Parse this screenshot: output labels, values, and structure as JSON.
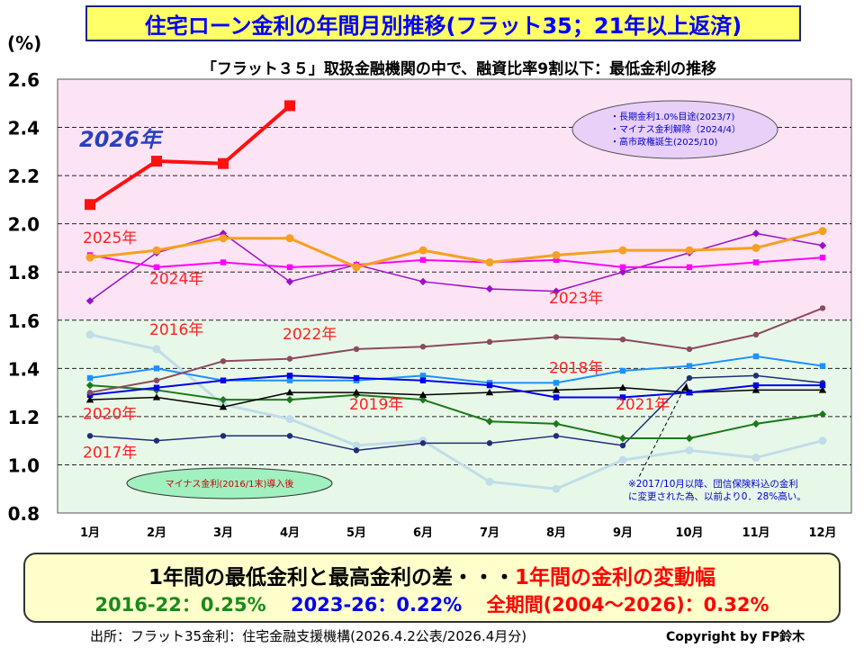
{
  "title": "住宅ローン金利の年間月別推移(フラット35；21年以上返済)",
  "subtitle": "「フラット３５」取扱金融機関の中で、融資比率9割以下：最低金利の推移",
  "unit_label": "(%)",
  "legend_box": {
    "items": [
      "・長期金利1.0%目途(2023/7)",
      "・マイナス金利解除（2024/4）",
      "・高市政権誕生(2025/10)"
    ]
  },
  "negative_rate_note": "マイナス金利(2016/1末)導入後",
  "insurance_note": [
    "※2017/10月以降、団信保険料込の金利",
    "に変更された為、以前より0．28%高い。"
  ],
  "summary": {
    "line1_black": "1年間の最低金利と最高金利の差・・・",
    "line1_red": "1年間の金利の変動幅",
    "green": "2016-22：0.25%",
    "blue": "2023-26：0.22%",
    "red": "全期間(2004～2026)：0.32%"
  },
  "source": "出所：フラット35金利：住宅金融支援機構(2026.4.2公表/2026.4月分)",
  "copyright": "Copyright by FP鈴木",
  "chart_data": {
    "type": "line",
    "categories": [
      "1月",
      "2月",
      "3月",
      "4月",
      "5月",
      "6月",
      "7月",
      "8月",
      "9月",
      "10月",
      "11月",
      "12月"
    ],
    "y_ticks": [
      "0.8",
      "1.0",
      "1.2",
      "1.4",
      "1.6",
      "1.8",
      "2.0",
      "2.2",
      "2.4",
      "2.6"
    ],
    "ylim": [
      0.8,
      2.6
    ],
    "grid": "horizontal dashed",
    "background_bands": [
      {
        "from": 1.6,
        "to": 2.6,
        "color": "#fce4f4"
      },
      {
        "from": 0.8,
        "to": 1.6,
        "color": "#e8f8e8"
      }
    ],
    "series": [
      {
        "name": "2016年",
        "color": "#c0dde8",
        "width": 3,
        "marker": "circle",
        "values": [
          1.54,
          1.48,
          1.25,
          1.19,
          1.08,
          1.1,
          0.93,
          0.9,
          1.02,
          1.06,
          1.03,
          1.1
        ]
      },
      {
        "name": "2017年",
        "color": "#1f2d7a",
        "width": 1.5,
        "marker": "circle",
        "values": [
          1.12,
          1.1,
          1.12,
          1.12,
          1.06,
          1.09,
          1.09,
          1.12,
          1.08,
          1.36,
          1.37,
          1.34
        ]
      },
      {
        "name": "2018年",
        "color": "#1e90ff",
        "width": 2,
        "marker": "square",
        "values": [
          1.36,
          1.4,
          1.35,
          1.35,
          1.35,
          1.37,
          1.34,
          1.34,
          1.39,
          1.41,
          1.45,
          1.41
        ]
      },
      {
        "name": "2019年",
        "color": "#1a7a1a",
        "width": 2,
        "marker": "diamond",
        "values": [
          1.33,
          1.31,
          1.27,
          1.27,
          1.29,
          1.27,
          1.18,
          1.17,
          1.11,
          1.11,
          1.17,
          1.21
        ]
      },
      {
        "name": "2020年",
        "color": "#000000",
        "width": 1.5,
        "marker": "triangle",
        "values": [
          1.27,
          1.28,
          1.24,
          1.3,
          1.3,
          1.29,
          1.3,
          1.31,
          1.32,
          1.3,
          1.31,
          1.31
        ]
      },
      {
        "name": "2021年",
        "color": "#0000ee",
        "width": 2,
        "marker": "square",
        "values": [
          1.29,
          1.32,
          1.35,
          1.37,
          1.36,
          1.35,
          1.33,
          1.28,
          1.28,
          1.3,
          1.33,
          1.33
        ]
      },
      {
        "name": "2022年",
        "color": "#8b4a5e",
        "width": 2,
        "marker": "circle",
        "values": [
          1.3,
          1.35,
          1.43,
          1.44,
          1.48,
          1.49,
          1.51,
          1.53,
          1.52,
          1.48,
          1.54,
          1.65
        ]
      },
      {
        "name": "2023年",
        "color": "#9b10c9",
        "width": 1.5,
        "marker": "diamond",
        "values": [
          1.68,
          1.88,
          1.96,
          1.76,
          1.83,
          1.76,
          1.73,
          1.72,
          1.8,
          1.88,
          1.96,
          1.91
        ]
      },
      {
        "name": "2024年",
        "color": "#ff00ff",
        "width": 2,
        "marker": "square",
        "values": [
          1.87,
          1.82,
          1.84,
          1.82,
          1.83,
          1.85,
          1.84,
          1.85,
          1.82,
          1.82,
          1.84,
          1.86
        ]
      },
      {
        "name": "2025年",
        "color": "#f5a020",
        "width": 3,
        "marker": "circle",
        "values": [
          1.86,
          1.89,
          1.94,
          1.94,
          1.82,
          1.89,
          1.84,
          1.87,
          1.89,
          1.89,
          1.9,
          1.97
        ]
      },
      {
        "name": "2026年",
        "color": "#ff1010",
        "width": 4,
        "marker": "square",
        "values": [
          2.08,
          2.26,
          2.25,
          2.49,
          null,
          null,
          null,
          null,
          null,
          null,
          null,
          null
        ]
      }
    ],
    "series_labels": [
      {
        "text": "2026年",
        "color": "#2a3fc0",
        "anchor_month": "1月",
        "anchor_value": 2.32
      },
      {
        "text": "2025年",
        "color": "#ff2020",
        "anchor_month": "1月",
        "anchor_value": 1.92
      },
      {
        "text": "2024年",
        "color": "#ff2020",
        "anchor_month": "2月",
        "anchor_value": 1.75
      },
      {
        "text": "2023年",
        "color": "#ff2020",
        "anchor_month": "8月",
        "anchor_value": 1.67
      },
      {
        "text": "2016年",
        "color": "#ff2020",
        "anchor_month": "2月",
        "anchor_value": 1.54
      },
      {
        "text": "2022年",
        "color": "#ff2020",
        "anchor_month": "4月",
        "anchor_value": 1.52
      },
      {
        "text": "2018年",
        "color": "#ff2020",
        "anchor_month": "8月",
        "anchor_value": 1.38
      },
      {
        "text": "2019年",
        "color": "#ff2020",
        "anchor_month": "5月",
        "anchor_value": 1.23
      },
      {
        "text": "2021年",
        "color": "#ff2020",
        "anchor_month": "9月",
        "anchor_value": 1.23
      },
      {
        "text": "2020年",
        "color": "#ff2020",
        "anchor_month": "1月",
        "anchor_value": 1.19
      },
      {
        "text": "2017年",
        "color": "#ff2020",
        "anchor_month": "1月",
        "anchor_value": 1.03
      }
    ]
  }
}
